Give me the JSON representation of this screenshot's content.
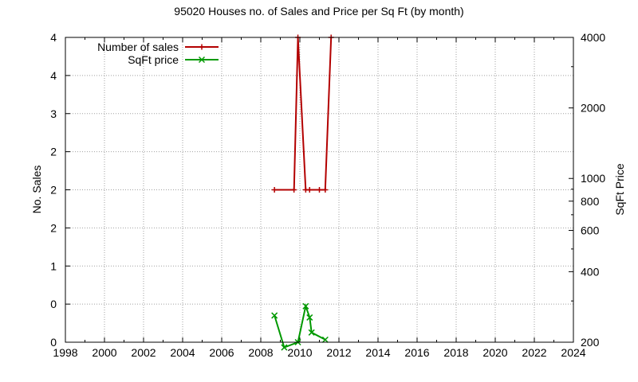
{
  "chart_data": {
    "type": "line",
    "title": "95020 Houses no. of Sales and Price per Sq Ft (by month)",
    "xlabel": "",
    "ylabel": "No. Sales",
    "y2label": "SqFt Price",
    "xlim": [
      1998,
      2024
    ],
    "ylim": [
      0,
      4
    ],
    "y2lim": [
      200,
      4000
    ],
    "y2_scale": "log",
    "grid": true,
    "legend_position": "top-left",
    "x_ticks": [
      "1998",
      "2000",
      "2002",
      "2004",
      "2006",
      "2008",
      "2010",
      "2012",
      "2014",
      "2016",
      "2018",
      "2020",
      "2022",
      "2024"
    ],
    "y_ticks": [
      {
        "value": 0,
        "label": "0"
      },
      {
        "value": 0.5,
        "label": "0"
      },
      {
        "value": 1,
        "label": "1"
      },
      {
        "value": 1.5,
        "label": "2"
      },
      {
        "value": 2,
        "label": "2"
      },
      {
        "value": 2.5,
        "label": "2"
      },
      {
        "value": 3,
        "label": "3"
      },
      {
        "value": 3.5,
        "label": "4"
      },
      {
        "value": 4,
        "label": "4"
      }
    ],
    "y2_ticks": [
      {
        "value": 200,
        "label": "200"
      },
      {
        "value": 400,
        "label": "400"
      },
      {
        "value": 600,
        "label": "600"
      },
      {
        "value": 800,
        "label": "800"
      },
      {
        "value": 1000,
        "label": "1000"
      },
      {
        "value": 2000,
        "label": "2000"
      },
      {
        "value": 4000,
        "label": "4000"
      }
    ],
    "series": [
      {
        "name": "Number of sales",
        "axis": "y",
        "color": "#b30000",
        "marker": "plus",
        "x": [
          2008.7,
          2009.7,
          2009.9,
          2010.3,
          2010.5,
          2011.0,
          2011.3,
          2011.6
        ],
        "y": [
          2,
          2,
          4,
          2,
          2,
          2,
          2,
          4
        ]
      },
      {
        "name": "SqFt price",
        "axis": "y2",
        "color": "#009900",
        "marker": "cross",
        "x": [
          2008.7,
          2009.2,
          2009.9,
          2010.3,
          2010.5,
          2010.6,
          2011.3
        ],
        "y": [
          260,
          190,
          200,
          285,
          255,
          220,
          205
        ]
      }
    ]
  }
}
